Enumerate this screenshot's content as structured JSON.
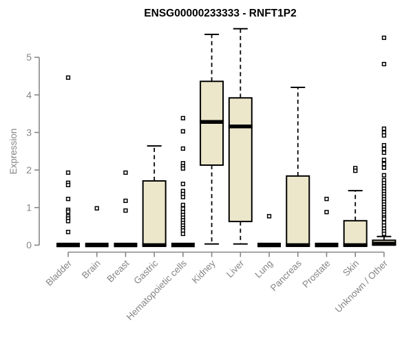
{
  "colors": {
    "box_fill": "#ece7cb",
    "box_stroke": "#000000",
    "median": "#000000",
    "whisker": "#000000",
    "outlier_stroke": "#000000",
    "outlier_fill": "#ffffff",
    "axis": "#858585",
    "title": "#000000",
    "background": "#ffffff"
  },
  "chart_data": {
    "type": "box",
    "title": "ENSG00000233333 - RNFT1P2",
    "xlabel": "",
    "ylabel": "Expression",
    "ylim": [
      0,
      5
    ],
    "yticks": [
      0,
      1,
      2,
      3,
      4,
      5
    ],
    "grid": false,
    "legend": "none",
    "categories": [
      "Bladder",
      "Brain",
      "Breast",
      "Gastric",
      "Hematopoietic cells",
      "Kidney",
      "Liver",
      "Lung",
      "Pancreas",
      "Prostate",
      "Skin",
      "Unknown / Other"
    ],
    "series": [
      {
        "name": "Bladder",
        "q1": 0,
        "median": 0,
        "q3": 0,
        "whisker_low": 0,
        "whisker_high": 0,
        "outliers": [
          4.46,
          1.93,
          1.66,
          1.6,
          1.23,
          0.94,
          0.89,
          0.77,
          0.71,
          0.64,
          0.35
        ]
      },
      {
        "name": "Brain",
        "q1": 0,
        "median": 0,
        "q3": 0,
        "whisker_low": 0,
        "whisker_high": 0,
        "outliers": [
          0.98
        ]
      },
      {
        "name": "Breast",
        "q1": 0,
        "median": 0,
        "q3": 0,
        "whisker_low": 0,
        "whisker_high": 0,
        "outliers": [
          1.93,
          1.18,
          0.92
        ]
      },
      {
        "name": "Gastric",
        "q1": 0,
        "median": 0,
        "q3": 1.71,
        "whisker_low": 0,
        "whisker_high": 2.64,
        "outliers": []
      },
      {
        "name": "Hematopoietic cells",
        "q1": 0,
        "median": 0,
        "q3": 0,
        "whisker_low": 0,
        "whisker_high": 0,
        "outliers": [
          3.38,
          3.03,
          2.57,
          2.18,
          2.1,
          2.04,
          1.63,
          1.44,
          1.36,
          1.28,
          1.07,
          0.97,
          0.88,
          0.8,
          0.73,
          0.66,
          0.59,
          0.52,
          0.45,
          0.39,
          0.3
        ]
      },
      {
        "name": "Kidney",
        "q1": 2.13,
        "median": 3.28,
        "q3": 4.36,
        "whisker_low": 0.03,
        "whisker_high": 5.61,
        "outliers": []
      },
      {
        "name": "Liver",
        "q1": 0.63,
        "median": 3.16,
        "q3": 3.92,
        "whisker_low": 0.03,
        "whisker_high": 5.76,
        "outliers": []
      },
      {
        "name": "Lung",
        "q1": 0,
        "median": 0,
        "q3": 0,
        "whisker_low": 0,
        "whisker_high": 0,
        "outliers": [
          0.77
        ]
      },
      {
        "name": "Pancreas",
        "q1": 0,
        "median": 0,
        "q3": 1.84,
        "whisker_low": 0,
        "whisker_high": 4.2,
        "outliers": []
      },
      {
        "name": "Prostate",
        "q1": 0,
        "median": 0,
        "q3": 0,
        "whisker_low": 0,
        "whisker_high": 0,
        "outliers": [
          1.23,
          0.88
        ]
      },
      {
        "name": "Skin",
        "q1": 0,
        "median": 0,
        "q3": 0.65,
        "whisker_low": 0,
        "whisker_high": 1.45,
        "outliers": [
          2.05,
          1.98
        ]
      },
      {
        "name": "Unknown / Other",
        "q1": 0,
        "median": 0.04,
        "q3": 0.13,
        "whisker_low": 0,
        "whisker_high": 0.23,
        "outliers": [
          5.52,
          4.82,
          3.1,
          3.0,
          2.92,
          2.66,
          2.56,
          2.46,
          2.27,
          2.16,
          2.06,
          1.86,
          1.73,
          1.65,
          1.57,
          1.5,
          1.43,
          1.36,
          1.29,
          1.22,
          1.15,
          1.08,
          1.01,
          0.94,
          0.88,
          0.81,
          0.74,
          0.7,
          0.6,
          0.52,
          0.44,
          0.37,
          0.3
        ]
      }
    ]
  }
}
